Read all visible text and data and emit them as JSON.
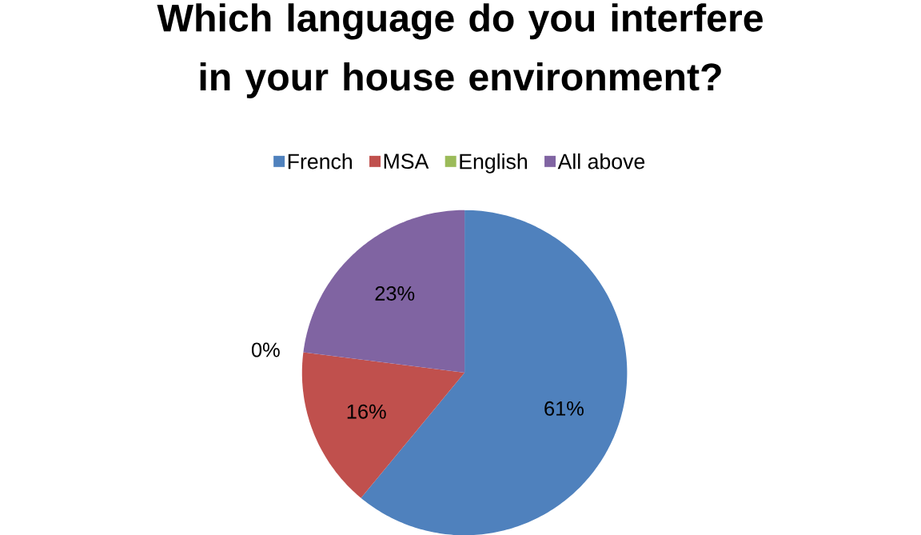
{
  "chart_data": {
    "type": "pie",
    "title": "Which language do you interfere in your house environment?",
    "categories": [
      "French",
      "MSA",
      "English",
      "All above"
    ],
    "values": [
      61,
      16,
      0,
      23
    ],
    "value_labels": [
      "61%",
      "16%",
      "0%",
      "23%"
    ],
    "colors": [
      "#4f81bd",
      "#c0504d",
      "#9bbb59",
      "#8064a2"
    ],
    "legend": "top"
  }
}
